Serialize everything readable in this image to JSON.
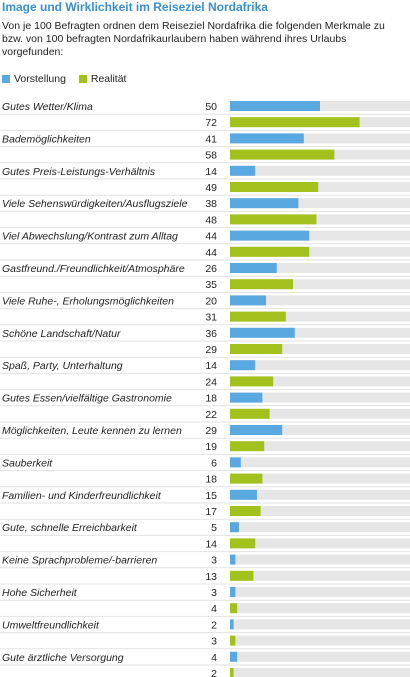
{
  "chart_data": {
    "type": "bar",
    "title": "Image und Wirklichkeit im Reiseziel Nordafrika",
    "subtitle": "Von je 100 Befragten ordnen dem Reiseziel Nordafrika die folgenden Merkmale zu bzw. von 100 befragten Nordafrikaurlaubern haben während ihres Urlaubs vorgefunden:",
    "orientation": "horizontal",
    "xlim": [
      0,
      100
    ],
    "grid": true,
    "legend": "top-left",
    "categories": [
      "Gutes Wetter/Klima",
      "Bademöglichkeiten",
      "Gutes Preis-Leistungs-Verhältnis",
      "Viele Sehenswürdigkeiten/Ausflugsziele",
      "Viel Abwechslung/Kontrast zum Alltag",
      "Gastfreund./Freundlichkeit/Atmosphäre",
      "Viele Ruhe-, Erholungsmöglichkeiten",
      "Schöne Landschaft/Natur",
      "Spaß, Party, Unterhaltung",
      "Gutes Essen/vielfältige Gastronomie",
      "Möglichkeiten, Leute kennen zu lernen",
      "Sauberkeit",
      "Familien- und Kinderfreundlichkeit",
      "Gute, schnelle Erreichbarkeit",
      "Keine Sprachprobleme/-barrieren",
      "Hohe Sicherheit",
      "Umweltfreundlichkeit",
      "Gute ärztliche Versorgung"
    ],
    "series": [
      {
        "name": "Vorstellung",
        "color": "#5aa8e0",
        "values": [
          50,
          41,
          14,
          38,
          44,
          26,
          20,
          36,
          14,
          18,
          29,
          6,
          15,
          5,
          3,
          3,
          2,
          4
        ]
      },
      {
        "name": "Realität",
        "color": "#a3c11c",
        "values": [
          72,
          58,
          49,
          48,
          44,
          35,
          31,
          29,
          24,
          22,
          19,
          18,
          17,
          14,
          13,
          4,
          3,
          2
        ]
      }
    ]
  }
}
